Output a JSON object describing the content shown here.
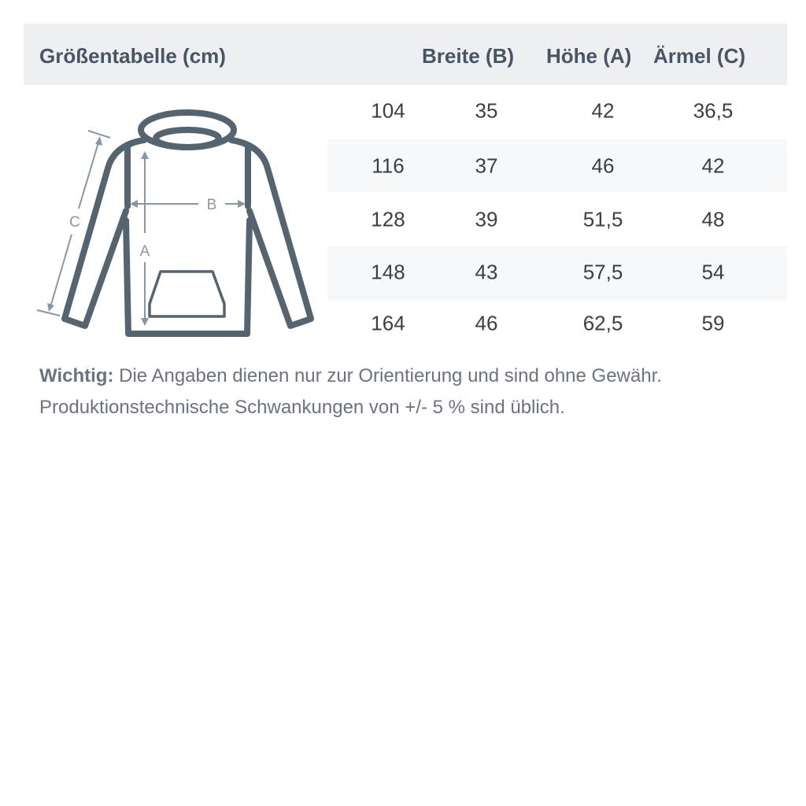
{
  "header": {
    "title": "Größentabelle (cm)",
    "columns": [
      "Breite (B)",
      "Höhe (A)",
      "Ärmel (C)"
    ]
  },
  "rows": [
    [
      "104",
      "35",
      "42",
      "36,5"
    ],
    [
      "116",
      "37",
      "46",
      "42"
    ],
    [
      "128",
      "39",
      "51,5",
      "48"
    ],
    [
      "148",
      "43",
      "57,5",
      "54"
    ],
    [
      "164",
      "46",
      "62,5",
      "59"
    ]
  ],
  "diagram": {
    "labels": {
      "a": "A",
      "b": "B",
      "c": "C"
    },
    "outline_color": "#566470",
    "arrow_color": "#8a96a3"
  },
  "note": {
    "strong": "Wichtig:",
    "line1": " Die Angaben dienen nur zur Orientierung und sind ohne Gewähr.",
    "line2": "Produktionstechnische Schwankungen von +/- 5 % sind üblich."
  }
}
